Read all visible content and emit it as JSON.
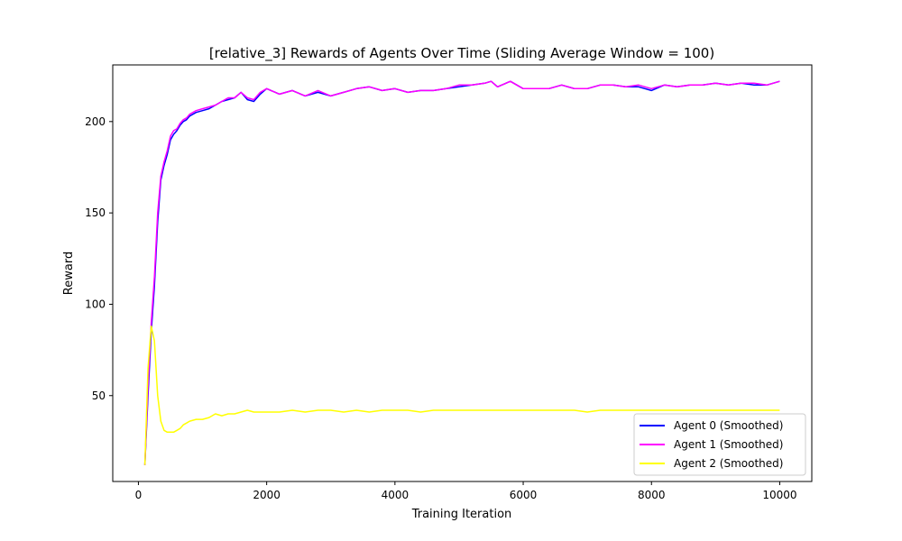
{
  "chart_data": {
    "type": "line",
    "title": "[relative_3] Rewards of Agents Over Time (Sliding Average Window = 100)",
    "xlabel": "Training Iteration",
    "ylabel": "Reward",
    "xlim": [
      -400,
      10500
    ],
    "ylim": [
      3,
      231
    ],
    "xticks": [
      0,
      2000,
      4000,
      6000,
      8000,
      10000
    ],
    "xtick_labels": [
      "0",
      "2000",
      "4000",
      "6000",
      "8000",
      "10000"
    ],
    "yticks": [
      50,
      100,
      150,
      200
    ],
    "ytick_labels": [
      "50",
      "100",
      "150",
      "200"
    ],
    "grid": false,
    "legend_position": "lower-right",
    "series": [
      {
        "name": "Agent 0 (Smoothed)",
        "color": "#0000ff",
        "x": [
          100,
          150,
          200,
          250,
          300,
          350,
          400,
          450,
          500,
          550,
          600,
          650,
          700,
          750,
          800,
          900,
          1000,
          1100,
          1200,
          1300,
          1400,
          1500,
          1600,
          1700,
          1800,
          1900,
          2000,
          2200,
          2400,
          2600,
          2800,
          3000,
          3200,
          3400,
          3600,
          3800,
          4000,
          4200,
          4400,
          4600,
          4800,
          5000,
          5200,
          5400,
          5500,
          5600,
          5800,
          6000,
          6200,
          6400,
          6600,
          6800,
          7000,
          7200,
          7400,
          7600,
          7800,
          8000,
          8200,
          8400,
          8600,
          8800,
          9000,
          9200,
          9400,
          9600,
          9800,
          10000
        ],
        "y": [
          12,
          50,
          85,
          110,
          145,
          168,
          176,
          182,
          190,
          193,
          195,
          198,
          200,
          201,
          203,
          205,
          206,
          207,
          209,
          211,
          212,
          213,
          216,
          212,
          211,
          215,
          218,
          215,
          217,
          214,
          216,
          214,
          216,
          218,
          219,
          217,
          218,
          216,
          217,
          217,
          218,
          219,
          220,
          221,
          222,
          219,
          222,
          218,
          218,
          218,
          220,
          218,
          218,
          220,
          220,
          219,
          219,
          217,
          220,
          219,
          220,
          220,
          221,
          220,
          221,
          220,
          220,
          222
        ]
      },
      {
        "name": "Agent 1 (Smoothed)",
        "color": "#ff00ff",
        "x": [
          100,
          150,
          200,
          250,
          300,
          350,
          400,
          450,
          500,
          550,
          600,
          650,
          700,
          750,
          800,
          900,
          1000,
          1100,
          1200,
          1300,
          1400,
          1500,
          1600,
          1700,
          1800,
          1900,
          2000,
          2200,
          2400,
          2600,
          2800,
          3000,
          3200,
          3400,
          3600,
          3800,
          4000,
          4200,
          4400,
          4600,
          4800,
          5000,
          5200,
          5400,
          5500,
          5600,
          5800,
          6000,
          6200,
          6400,
          6600,
          6800,
          7000,
          7200,
          7400,
          7600,
          7800,
          8000,
          8200,
          8400,
          8600,
          8800,
          9000,
          9200,
          9400,
          9600,
          9800,
          10000
        ],
        "y": [
          12,
          55,
          90,
          115,
          150,
          170,
          178,
          184,
          192,
          195,
          196,
          199,
          201,
          202,
          204,
          206,
          207,
          208,
          209,
          211,
          213,
          213,
          216,
          213,
          212,
          216,
          218,
          215,
          217,
          214,
          217,
          214,
          216,
          218,
          219,
          217,
          218,
          216,
          217,
          217,
          218,
          220,
          220,
          221,
          222,
          219,
          222,
          218,
          218,
          218,
          220,
          218,
          218,
          220,
          220,
          219,
          220,
          218,
          220,
          219,
          220,
          220,
          221,
          220,
          221,
          221,
          220,
          222
        ]
      },
      {
        "name": "Agent 2 (Smoothed)",
        "color": "#ffff00",
        "x": [
          100,
          150,
          200,
          250,
          300,
          350,
          400,
          450,
          500,
          550,
          600,
          650,
          700,
          750,
          800,
          900,
          1000,
          1100,
          1200,
          1300,
          1400,
          1500,
          1600,
          1700,
          1800,
          1900,
          2000,
          2200,
          2400,
          2600,
          2800,
          3000,
          3200,
          3400,
          3600,
          3800,
          4000,
          4200,
          4400,
          4600,
          4800,
          5000,
          5200,
          5400,
          5600,
          5800,
          6000,
          6200,
          6400,
          6600,
          6800,
          7000,
          7200,
          7400,
          7600,
          7800,
          8000,
          8200,
          8400,
          8600,
          8800,
          9000,
          9200,
          9400,
          9600,
          9800,
          10000
        ],
        "y": [
          12,
          65,
          88,
          80,
          50,
          36,
          31,
          30,
          30,
          30,
          31,
          32,
          34,
          35,
          36,
          37,
          37,
          38,
          40,
          39,
          40,
          40,
          41,
          42,
          41,
          41,
          41,
          41,
          42,
          41,
          42,
          42,
          41,
          42,
          41,
          42,
          42,
          42,
          41,
          42,
          42,
          42,
          42,
          42,
          42,
          42,
          42,
          42,
          42,
          42,
          42,
          41,
          42,
          42,
          42,
          42,
          42,
          42,
          42,
          42,
          42,
          42,
          42,
          42,
          42,
          42,
          42
        ]
      }
    ]
  }
}
